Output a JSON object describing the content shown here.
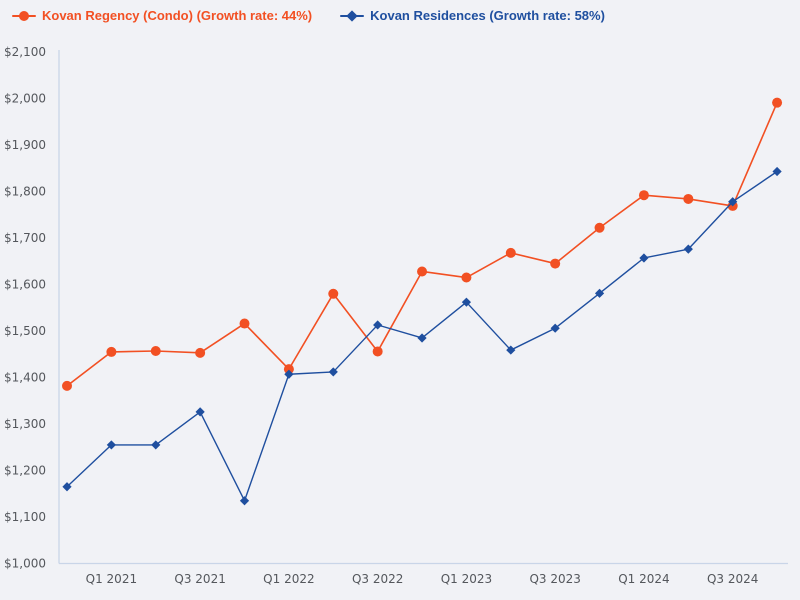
{
  "legend": {
    "items": [
      {
        "label": "Kovan Regency (Condo) (Growth rate: 44%)"
      },
      {
        "label": "Kovan Residences (Growth rate: 58%)"
      }
    ]
  },
  "colors": {
    "background": "#f1f2f6",
    "axis_line": "#c9d5e8",
    "tick_text": "#54575c",
    "series1": "#f25023",
    "series2": "#1f4f9f"
  },
  "chart_data": {
    "type": "line",
    "x": [
      "Q4 2020",
      "Q1 2021",
      "Q2 2021",
      "Q3 2021",
      "Q4 2021",
      "Q1 2022",
      "Q2 2022",
      "Q3 2022",
      "Q4 2022",
      "Q1 2023",
      "Q2 2023",
      "Q3 2023",
      "Q4 2023",
      "Q1 2024",
      "Q2 2024",
      "Q3 2024",
      "Q4 2024"
    ],
    "x_ticks": {
      "indices": [
        1,
        3,
        5,
        7,
        9,
        11,
        13,
        15
      ],
      "labels": [
        "Q1 2021",
        "Q3 2021",
        "Q1 2022",
        "Q3 2022",
        "Q1 2023",
        "Q3 2023",
        "Q1 2024",
        "Q3 2024"
      ]
    },
    "series": [
      {
        "name": "Kovan Regency (Condo)",
        "growth_rate": "44%",
        "marker": "circle",
        "color": "#f25023",
        "values": [
          1382,
          1455,
          1457,
          1453,
          1516,
          1418,
          1580,
          1456,
          1628,
          1615,
          1668,
          1645,
          1722,
          1792,
          1784,
          1769,
          1991
        ]
      },
      {
        "name": "Kovan Residences",
        "growth_rate": "58%",
        "marker": "diamond",
        "color": "#1f4f9f",
        "values": [
          1165,
          1255,
          1255,
          1326,
          1135,
          1407,
          1412,
          1513,
          1485,
          1562,
          1459,
          1506,
          1581,
          1657,
          1676,
          1778,
          1843
        ]
      }
    ],
    "title": "",
    "xlabel": "",
    "ylabel": "",
    "ylim": [
      1000,
      2100
    ],
    "y_tick_step": 100,
    "y_tick_prefix": "$",
    "grid": false,
    "legend_position": "top"
  }
}
